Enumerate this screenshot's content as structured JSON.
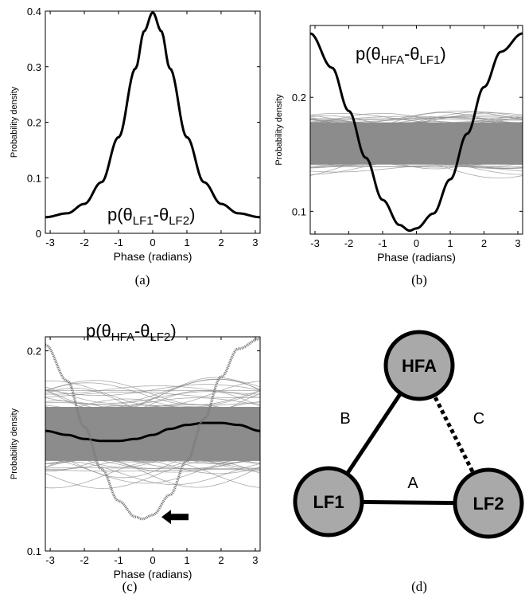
{
  "panels": [
    {
      "caption": "(a)",
      "annotation": "p(θLF1-θLF2)",
      "annotation_parts": [
        {
          "t": "p(θ"
        },
        {
          "t": "LF1",
          "sub": true
        },
        {
          "t": "-θ"
        },
        {
          "t": "LF2",
          "sub": true
        },
        {
          "t": ")"
        }
      ]
    },
    {
      "caption": "(b)",
      "annotation": "p(θHFA-θLF1)",
      "annotation_parts": [
        {
          "t": "p(θ"
        },
        {
          "t": "HFA",
          "sub": true
        },
        {
          "t": "-θ"
        },
        {
          "t": "LF1",
          "sub": true
        },
        {
          "t": ")"
        }
      ]
    },
    {
      "caption": "(c)",
      "annotation": "p(θHFA-θLF2)",
      "annotation_parts": [
        {
          "t": "p(θ"
        },
        {
          "t": "HFA",
          "sub": true
        },
        {
          "t": "-θ"
        },
        {
          "t": "LF2",
          "sub": true
        },
        {
          "t": ")"
        }
      ]
    },
    {
      "caption": "(d)"
    }
  ],
  "chart_data": [
    {
      "type": "line",
      "xlabel": "Phase (radians)",
      "ylabel": "Probability density",
      "xlim": [
        -3.14159,
        3.14159
      ],
      "ylim": [
        0,
        0.4
      ],
      "xticks": [
        -3,
        -2,
        -1,
        0,
        1,
        2,
        3
      ],
      "yticks": [
        0,
        0.1,
        0.2,
        0.3,
        0.4
      ],
      "ytick_labels": [
        "0",
        "0.1",
        "0.2",
        "0.3",
        "0.4"
      ],
      "grid": false,
      "series": [
        {
          "style": "solid",
          "color": "#000000",
          "x": [
            -3.14,
            -2.5,
            -2,
            -1.5,
            -1,
            -0.5,
            -0.25,
            0,
            0.25,
            0.5,
            1,
            1.5,
            2,
            2.5,
            3.14
          ],
          "y": [
            0.029,
            0.036,
            0.053,
            0.092,
            0.173,
            0.297,
            0.364,
            0.398,
            0.364,
            0.297,
            0.173,
            0.092,
            0.053,
            0.036,
            0.029
          ]
        }
      ],
      "band": null
    },
    {
      "type": "line",
      "xlabel": "Phase (radians)",
      "ylabel": "Probability density",
      "xlim": [
        -3.14159,
        3.14159
      ],
      "ylim": [
        0.08,
        0.263
      ],
      "xticks": [
        -3,
        -2,
        -1,
        0,
        1,
        2,
        3
      ],
      "yticks": [
        0.1,
        0.2
      ],
      "ytick_labels": [
        "0.1",
        "0.2"
      ],
      "grid": false,
      "series": [
        {
          "style": "solid",
          "color": "#000000",
          "x": [
            -3.14,
            -2.5,
            -2,
            -1.5,
            -1,
            -0.5,
            -0.2,
            0,
            0.5,
            1,
            1.5,
            2,
            2.5,
            3.14
          ],
          "y": [
            0.256,
            0.226,
            0.188,
            0.147,
            0.11,
            0.088,
            0.083,
            0.085,
            0.098,
            0.128,
            0.168,
            0.209,
            0.24,
            0.256
          ]
        }
      ],
      "band": {
        "color": "#8c8c8c",
        "lower": 0.137,
        "upper": 0.184,
        "core_lower": 0.141,
        "core_upper": 0.178
      }
    },
    {
      "type": "line",
      "xlabel": "Phase (radians)",
      "ylabel": "Probability density",
      "xlim": [
        -3.14159,
        3.14159
      ],
      "ylim": [
        0.1,
        0.207
      ],
      "xticks": [
        -3,
        -2,
        -1,
        0,
        1,
        2,
        3
      ],
      "yticks": [
        0.1,
        0.2
      ],
      "ytick_labels": [
        "0.1",
        "0.2"
      ],
      "grid": false,
      "series": [
        {
          "style": "solid",
          "color": "#000000",
          "x": [
            -3.14,
            -2.5,
            -2,
            -1.5,
            -1,
            -0.5,
            0,
            0.5,
            1,
            1.5,
            2,
            2.5,
            3.14
          ],
          "y": [
            0.16,
            0.158,
            0.156,
            0.155,
            0.155,
            0.156,
            0.158,
            0.161,
            0.163,
            0.164,
            0.164,
            0.163,
            0.16
          ]
        },
        {
          "style": "dotted",
          "color": "#7a7a7a",
          "x": [
            -3.14,
            -2.5,
            -2,
            -1.5,
            -1,
            -0.5,
            -0.3,
            0,
            0.5,
            1,
            1.5,
            2,
            2.5,
            3.14
          ],
          "y": [
            0.203,
            0.185,
            0.162,
            0.141,
            0.125,
            0.117,
            0.116,
            0.118,
            0.128,
            0.145,
            0.166,
            0.187,
            0.201,
            0.206
          ]
        }
      ],
      "band": {
        "color": "#8c8c8c",
        "lower": 0.138,
        "upper": 0.181,
        "core_lower": 0.145,
        "core_upper": 0.172
      },
      "arrow": {
        "x": 1.0,
        "y": 0.117,
        "direction": "left"
      }
    }
  ],
  "diagram": {
    "nodes": [
      {
        "id": "HFA",
        "label": "HFA"
      },
      {
        "id": "LF1",
        "label": "LF1"
      },
      {
        "id": "LF2",
        "label": "LF2"
      }
    ],
    "edges": [
      {
        "from": "LF1",
        "to": "LF2",
        "label": "A",
        "style": "solid"
      },
      {
        "from": "HFA",
        "to": "LF1",
        "label": "B",
        "style": "solid"
      },
      {
        "from": "HFA",
        "to": "LF2",
        "label": "C",
        "style": "dotted"
      }
    ],
    "node_fill": "#a9a9a9"
  }
}
